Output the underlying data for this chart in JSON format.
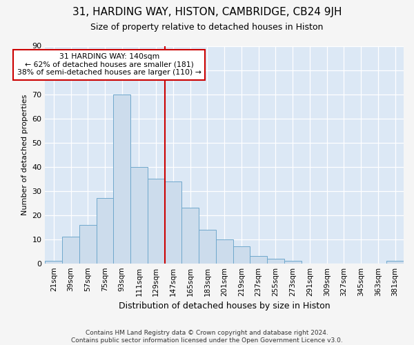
{
  "title": "31, HARDING WAY, HISTON, CAMBRIDGE, CB24 9JH",
  "subtitle": "Size of property relative to detached houses in Histon",
  "xlabel": "Distribution of detached houses by size in Histon",
  "ylabel": "Number of detached properties",
  "bar_color": "#ccdcec",
  "bar_edge_color": "#6fa8cc",
  "categories": [
    "21sqm",
    "39sqm",
    "57sqm",
    "75sqm",
    "93sqm",
    "111sqm",
    "129sqm",
    "147sqm",
    "165sqm",
    "183sqm",
    "201sqm",
    "219sqm",
    "237sqm",
    "255sqm",
    "273sqm",
    "291sqm",
    "309sqm",
    "327sqm",
    "345sqm",
    "363sqm",
    "381sqm"
  ],
  "values": [
    1,
    11,
    16,
    27,
    70,
    40,
    35,
    34,
    23,
    14,
    10,
    7,
    3,
    2,
    1,
    0,
    0,
    0,
    0,
    0,
    1
  ],
  "vline_x": 7,
  "vline_color": "#cc0000",
  "annotation_text": "31 HARDING WAY: 140sqm\n← 62% of detached houses are smaller (181)\n38% of semi-detached houses are larger (110) →",
  "annotation_box_color": "#ffffff",
  "annotation_box_edgecolor": "#cc0000",
  "ylim": [
    0,
    90
  ],
  "yticks": [
    0,
    10,
    20,
    30,
    40,
    50,
    60,
    70,
    80,
    90
  ],
  "footer": "Contains HM Land Registry data © Crown copyright and database right 2024.\nContains public sector information licensed under the Open Government Licence v3.0.",
  "fig_bg_color": "#f5f5f5",
  "plot_bg_color": "#dce8f5",
  "grid_color": "#ffffff",
  "title_fontsize": 11,
  "subtitle_fontsize": 9,
  "xlabel_fontsize": 9,
  "ylabel_fontsize": 8
}
